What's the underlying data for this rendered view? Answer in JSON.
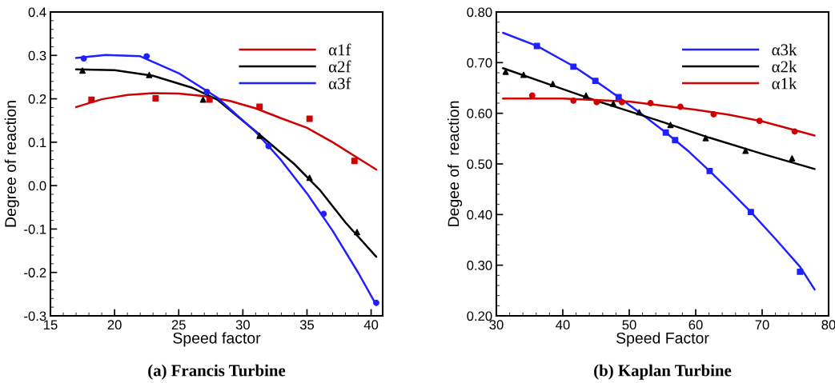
{
  "chart_data": [
    {
      "type": "scatter",
      "title": "(a) Francis Turbine",
      "xlabel": "Speed factor",
      "ylabel": "Degree of reaction",
      "xlim": [
        15,
        40.9
      ],
      "xticks": [
        15,
        20,
        25,
        30,
        35,
        40
      ],
      "ylim": [
        -0.3,
        0.4
      ],
      "yticks": [
        {
          "value": -0.3,
          "label": "-0.3"
        },
        {
          "value": -0.2,
          "label": "-0.2"
        },
        {
          "value": -0.1,
          "label": "-0.1"
        },
        {
          "value": 0,
          "label": "0.0"
        },
        0.1,
        0.2,
        0.3,
        0.4
      ],
      "grid": false,
      "legend": "top right",
      "series": [
        {
          "type": "line",
          "color": "#d00000",
          "x": [
            17,
            19,
            21,
            23,
            25,
            27,
            29,
            31,
            33,
            35,
            37,
            39,
            40.4
          ],
          "values": [
            0.181,
            0.199,
            0.209,
            0.213,
            0.212,
            0.206,
            0.195,
            0.178,
            0.155,
            0.133,
            0.1,
            0.063,
            0.037
          ]
        },
        {
          "type": "line",
          "color": "#000000",
          "x": [
            17,
            20,
            23,
            26,
            28,
            31,
            34,
            36,
            38,
            40.4
          ],
          "values": [
            0.268,
            0.266,
            0.253,
            0.226,
            0.198,
            0.125,
            0.05,
            -0.01,
            -0.085,
            -0.164
          ]
        },
        {
          "type": "line",
          "color": "#2020ff",
          "x": [
            17,
            19.3,
            22,
            25,
            28,
            31,
            33,
            35,
            37,
            39,
            40.4
          ],
          "values": [
            0.294,
            0.301,
            0.298,
            0.259,
            0.203,
            0.124,
            0.058,
            -0.018,
            -0.104,
            -0.201,
            -0.275
          ]
        },
        {
          "name": "α1f",
          "color": "#d00000",
          "marker": "square",
          "x": [
            18.2,
            23.2,
            27.4,
            31.3,
            35.2,
            38.7
          ],
          "values": [
            0.198,
            0.201,
            0.198,
            0.182,
            0.154,
            0.057
          ]
        },
        {
          "name": "α2f",
          "color": "#000000",
          "marker": "triangle",
          "x": [
            17.5,
            22.7,
            26.9,
            31.3,
            35.2,
            38.9
          ],
          "values": [
            0.265,
            0.255,
            0.198,
            0.115,
            0.018,
            -0.107
          ]
        },
        {
          "name": "α3f",
          "color": "#2020ff",
          "marker": "circle",
          "x": [
            17.6,
            22.5,
            27.2,
            32.0,
            36.3,
            40.4
          ],
          "values": [
            0.293,
            0.298,
            0.216,
            0.091,
            -0.065,
            -0.27
          ]
        }
      ]
    },
    {
      "type": "scatter",
      "title": "(b) Kaplan Turbine",
      "xlabel": "Speed Factor",
      "ylabel": "Degee of  reaction",
      "xlim": [
        30,
        80
      ],
      "xticks": [
        30,
        40,
        50,
        60,
        70,
        80
      ],
      "ylim": [
        0.2,
        0.8
      ],
      "yticks": [
        {
          "value": 0.2,
          "label": "0.20"
        },
        {
          "value": 0.3,
          "label": "0.30"
        },
        {
          "value": 0.4,
          "label": "0.40"
        },
        {
          "value": 0.5,
          "label": "0.50"
        },
        {
          "value": 0.6,
          "label": "0.60"
        },
        {
          "value": 0.7,
          "label": "0.70"
        },
        {
          "value": 0.8,
          "label": "0.80"
        }
      ],
      "grid": false,
      "legend": "top right",
      "series": [
        {
          "type": "line",
          "color": "#2020ff",
          "x": [
            31,
            36.1,
            41.6,
            44.9,
            48.4,
            52,
            55.5,
            59,
            62.1,
            65,
            68.3,
            72,
            75.7,
            77.9
          ],
          "values": [
            0.759,
            0.733,
            0.693,
            0.664,
            0.632,
            0.597,
            0.562,
            0.524,
            0.486,
            0.449,
            0.405,
            0.352,
            0.297,
            0.252
          ]
        },
        {
          "type": "line",
          "color": "#000000",
          "x": [
            31,
            38,
            45,
            54.5,
            62,
            70,
            77.9
          ],
          "values": [
            0.689,
            0.657,
            0.625,
            0.585,
            0.552,
            0.52,
            0.49
          ]
        },
        {
          "type": "line",
          "color": "#d00000",
          "x": [
            31,
            40,
            50,
            60,
            65,
            70,
            77.9
          ],
          "values": [
            0.629,
            0.629,
            0.623,
            0.607,
            0.597,
            0.584,
            0.556
          ]
        },
        {
          "name": "α3k",
          "color": "#2020ff",
          "marker": "square",
          "x": [
            36.1,
            41.6,
            44.9,
            48.4,
            55.5,
            56.9,
            62.1,
            68.3,
            75.7
          ],
          "values": [
            0.733,
            0.692,
            0.664,
            0.632,
            0.562,
            0.547,
            0.486,
            0.405,
            0.287
          ]
        },
        {
          "name": "α2k",
          "color": "#000000",
          "marker": "triangle",
          "x": [
            31.4,
            34.1,
            38.5,
            43.5,
            47.6,
            51.5,
            56.2,
            61.5,
            67.5,
            74.5
          ],
          "values": [
            0.682,
            0.676,
            0.658,
            0.635,
            0.619,
            0.602,
            0.577,
            0.551,
            0.526,
            0.511
          ]
        },
        {
          "name": "α1k",
          "color": "#d00000",
          "marker": "circle",
          "x": [
            35.4,
            41.6,
            45.1,
            48.9,
            53.2,
            57.7,
            62.7,
            69.6,
            74.9
          ],
          "values": [
            0.635,
            0.625,
            0.622,
            0.622,
            0.62,
            0.613,
            0.598,
            0.585,
            0.564
          ]
        }
      ]
    }
  ]
}
